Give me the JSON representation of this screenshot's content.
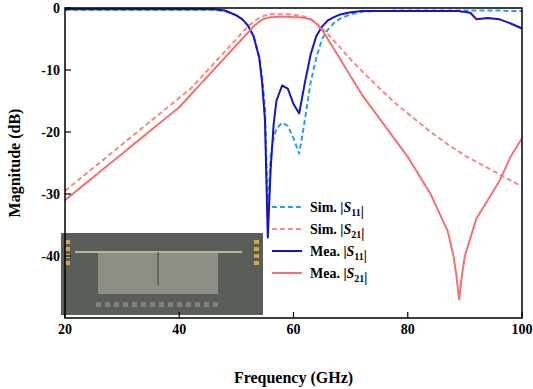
{
  "chart_data": {
    "type": "line",
    "x_label": "Frequency (GHz)",
    "y_label": "Magnitude (dB)",
    "xlim": [
      20,
      100
    ],
    "ylim": [
      -50,
      0
    ],
    "xticks": [
      20,
      40,
      60,
      80,
      100
    ],
    "yticks": [
      -40,
      -30,
      -20,
      -10,
      0
    ],
    "legend": "lower right",
    "grid": false,
    "x": [
      20,
      22,
      24,
      26,
      28,
      30,
      32,
      34,
      36,
      38,
      40,
      42,
      44,
      46,
      48,
      50,
      51,
      52,
      53,
      54,
      54.5,
      55,
      55.5,
      56,
      56.5,
      57,
      58,
      59,
      60,
      61,
      62,
      63,
      64,
      65,
      66,
      67,
      68,
      70,
      72,
      74,
      76,
      78,
      80,
      82,
      84,
      86,
      87,
      88,
      88.5,
      89,
      89.5,
      90,
      91,
      92,
      94,
      96,
      98,
      100
    ],
    "series": [
      {
        "name": "Sim. |S11|",
        "color": "#2e9be6",
        "line_style": "dashed",
        "values": [
          -0.3,
          -0.3,
          -0.3,
          -0.3,
          -0.3,
          -0.3,
          -0.3,
          -0.3,
          -0.3,
          -0.3,
          -0.3,
          -0.3,
          -0.3,
          -0.3,
          -0.5,
          -1.2,
          -1.8,
          -2.8,
          -4.5,
          -8,
          -11,
          -16,
          -33,
          -24,
          -21,
          -19.5,
          -18.5,
          -19,
          -21,
          -23.5,
          -18,
          -12,
          -8,
          -5,
          -3.5,
          -2.5,
          -1.8,
          -1,
          -0.6,
          -0.5,
          -0.5,
          -0.4,
          -0.4,
          -0.4,
          -0.4,
          -0.4,
          -0.4,
          -0.4,
          -0.4,
          -0.4,
          -0.4,
          -0.4,
          -0.4,
          -0.4,
          -0.4,
          -0.4,
          -0.5,
          -0.5
        ]
      },
      {
        "name": "Sim. |S21|",
        "color": "#f28b86",
        "line_style": "dashed",
        "values": [
          -29.5,
          -28,
          -26.5,
          -25,
          -23.5,
          -22,
          -20.5,
          -19,
          -17.5,
          -16,
          -14.5,
          -13,
          -11,
          -9,
          -7,
          -5,
          -4,
          -3,
          -2.2,
          -1.6,
          -1.4,
          -1.2,
          -1.1,
          -1,
          -1,
          -1,
          -1,
          -1,
          -1.1,
          -1.2,
          -1.4,
          -1.8,
          -2.5,
          -3.3,
          -4.2,
          -5.2,
          -6.2,
          -8.3,
          -10.2,
          -12,
          -13.8,
          -15.5,
          -17,
          -18.5,
          -20,
          -21.3,
          -22,
          -22.6,
          -22.9,
          -23.2,
          -23.5,
          -23.8,
          -24.3,
          -24.8,
          -25.8,
          -26.8,
          -27.8,
          -28.8
        ]
      },
      {
        "name": "Mea. |S11|",
        "color": "#1414c8",
        "line_style": "solid",
        "values": [
          -0.2,
          -0.2,
          -0.2,
          -0.2,
          -0.2,
          -0.2,
          -0.2,
          -0.2,
          -0.2,
          -0.2,
          -0.2,
          -0.2,
          -0.2,
          -0.2,
          -0.4,
          -1.2,
          -1.8,
          -2.8,
          -4.5,
          -8,
          -12,
          -18,
          -37,
          -26,
          -19,
          -15,
          -12.5,
          -13,
          -15.5,
          -17,
          -12,
          -7.5,
          -4.5,
          -3,
          -2,
          -1.5,
          -1.1,
          -0.7,
          -0.5,
          -0.5,
          -0.5,
          -0.5,
          -0.5,
          -0.5,
          -0.5,
          -0.5,
          -0.5,
          -0.5,
          -0.5,
          -0.5,
          -0.6,
          -0.6,
          -0.8,
          -1.8,
          -1.6,
          -1.8,
          -2.5,
          -3.3
        ]
      },
      {
        "name": "Mea. |S21|",
        "color": "#f07272",
        "line_style": "solid",
        "values": [
          -31,
          -29.5,
          -28,
          -26.5,
          -25,
          -23.5,
          -22,
          -20.5,
          -19,
          -17.5,
          -16,
          -14,
          -12,
          -10,
          -8,
          -6,
          -5,
          -4,
          -3,
          -2.2,
          -1.9,
          -1.7,
          -1.6,
          -1.5,
          -1.5,
          -1.4,
          -1.4,
          -1.4,
          -1.5,
          -1.5,
          -1.6,
          -1.8,
          -2.5,
          -3.5,
          -5,
          -6.5,
          -8,
          -11,
          -14,
          -16.5,
          -19,
          -21.5,
          -24,
          -27,
          -30,
          -34,
          -36,
          -40,
          -43,
          -47,
          -43,
          -40,
          -37,
          -34,
          -31,
          -28,
          -24,
          -21
        ]
      }
    ]
  }
}
